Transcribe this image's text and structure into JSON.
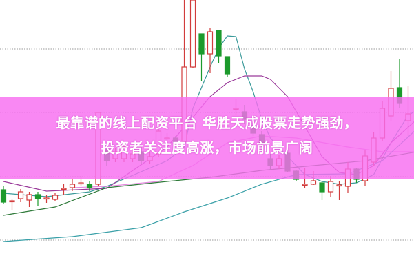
{
  "headline": {
    "line1": "最靠谱的线上配资平台 华胜天成股票走势强劲，",
    "line2": "投资者关注度高涨，市场前景广阔"
  },
  "colors": {
    "up": "#d23c3c",
    "down": "#1c9a2c",
    "banner": "#f86ef0",
    "grid": "#999999"
  },
  "chart_data": {
    "type": "candlestick",
    "title": "",
    "xlabel": "",
    "ylabel": "",
    "ylim": [
      0,
      40
    ],
    "grid": "horizontal dotted",
    "gridlines": [
      32.9,
      23.7,
      14.4,
      5.2
    ],
    "candles": [
      {
        "o": 12.5,
        "h": 13.0,
        "l": 10.4,
        "c": 10.7
      },
      {
        "o": 10.9,
        "h": 11.2,
        "l": 9.5,
        "c": 10.9
      },
      {
        "o": 11.2,
        "h": 12.6,
        "l": 10.7,
        "c": 12.2
      },
      {
        "o": 11.0,
        "h": 12.2,
        "l": 10.0,
        "c": 11.8
      },
      {
        "o": 11.8,
        "h": 12.2,
        "l": 10.2,
        "c": 11.2
      },
      {
        "o": 11.3,
        "h": 11.8,
        "l": 10.6,
        "c": 11.3
      },
      {
        "o": 11.1,
        "h": 12.0,
        "l": 10.8,
        "c": 11.7
      },
      {
        "o": 12.7,
        "h": 13.3,
        "l": 11.7,
        "c": 12.7
      },
      {
        "o": 12.8,
        "h": 14.0,
        "l": 12.3,
        "c": 13.3
      },
      {
        "o": 13.5,
        "h": 14.5,
        "l": 13.0,
        "c": 13.5
      },
      {
        "o": 13.3,
        "h": 13.7,
        "l": 12.3,
        "c": 12.8
      },
      {
        "o": 13.3,
        "h": 23.7,
        "l": 13.0,
        "c": 23.7
      },
      {
        "o": 18.3,
        "h": 19.0,
        "l": 16.0,
        "c": 16.7
      },
      {
        "o": 17.0,
        "h": 18.5,
        "l": 16.5,
        "c": 18.0
      },
      {
        "o": 17.0,
        "h": 19.2,
        "l": 16.5,
        "c": 18.7
      },
      {
        "o": 17.0,
        "h": 18.5,
        "l": 16.5,
        "c": 17.7
      },
      {
        "o": 18.0,
        "h": 18.7,
        "l": 16.3,
        "c": 16.7
      },
      {
        "o": 16.7,
        "h": 18.0,
        "l": 16.2,
        "c": 17.3
      },
      {
        "o": 17.7,
        "h": 22.0,
        "l": 17.3,
        "c": 21.0
      },
      {
        "o": 20.0,
        "h": 20.7,
        "l": 19.5,
        "c": 20.0
      },
      {
        "o": 20.0,
        "h": 20.3,
        "l": 19.0,
        "c": 19.3
      },
      {
        "o": 19.5,
        "h": 40.0,
        "l": 19.3,
        "c": 30.3
      },
      {
        "o": 30.3,
        "h": 40.0,
        "l": 30.1,
        "c": 40.0
      },
      {
        "o": 35.1,
        "h": 35.1,
        "l": 28.3,
        "c": 32.2
      },
      {
        "o": 32.2,
        "h": 36.0,
        "l": 29.4,
        "c": 35.4
      },
      {
        "o": 35.6,
        "h": 35.6,
        "l": 30.8,
        "c": 31.9
      },
      {
        "o": 31.8,
        "h": 31.8,
        "l": 28.9,
        "c": 29.3
      },
      {
        "o": 24.3,
        "h": 25.7,
        "l": 23.3,
        "c": 24.3
      },
      {
        "o": 23.8,
        "h": 24.8,
        "l": 22.0,
        "c": 22.7
      },
      {
        "o": 21.8,
        "h": 22.3,
        "l": 20.3,
        "c": 20.7
      },
      {
        "o": 20.5,
        "h": 21.0,
        "l": 18.7,
        "c": 19.2
      },
      {
        "o": 17.0,
        "h": 17.7,
        "l": 15.3,
        "c": 16.0
      },
      {
        "o": 16.0,
        "h": 17.5,
        "l": 15.5,
        "c": 17.0
      },
      {
        "o": 17.8,
        "h": 18.3,
        "l": 15.0,
        "c": 15.2
      },
      {
        "o": 15.2,
        "h": 15.3,
        "l": 13.8,
        "c": 14.0
      },
      {
        "o": 13.3,
        "h": 15.7,
        "l": 12.7,
        "c": 13.3
      },
      {
        "o": 13.3,
        "h": 15.2,
        "l": 13.2,
        "c": 13.8
      },
      {
        "o": 13.5,
        "h": 13.7,
        "l": 11.0,
        "c": 12.2
      },
      {
        "o": 12.2,
        "h": 14.5,
        "l": 11.4,
        "c": 13.7
      },
      {
        "o": 13.2,
        "h": 13.7,
        "l": 11.0,
        "c": 13.2
      },
      {
        "o": 13.0,
        "h": 16.5,
        "l": 12.0,
        "c": 15.5
      },
      {
        "o": 15.5,
        "h": 15.7,
        "l": 13.5,
        "c": 14.0
      },
      {
        "o": 13.8,
        "h": 18.3,
        "l": 13.0,
        "c": 17.4
      },
      {
        "o": 16.5,
        "h": 20.8,
        "l": 16.0,
        "c": 20.0
      },
      {
        "o": 20.0,
        "h": 25.3,
        "l": 19.5,
        "c": 24.3
      },
      {
        "o": 23.2,
        "h": 29.7,
        "l": 22.5,
        "c": 27.2
      },
      {
        "o": 27.3,
        "h": 31.4,
        "l": 24.3,
        "c": 25.0
      },
      {
        "o": 22.5,
        "h": 27.5,
        "l": 20.3,
        "c": 23.5
      }
    ],
    "moving_averages": [
      {
        "color": "#3a9a9a",
        "points": [
          [
            0,
            12.0
          ],
          [
            5,
            11.5
          ],
          [
            10,
            12.2
          ],
          [
            12,
            13.0
          ],
          [
            19,
            16.7
          ],
          [
            21,
            18.7
          ],
          [
            22,
            24.3
          ],
          [
            23,
            27.3
          ],
          [
            24,
            30.3
          ],
          [
            25,
            33.0
          ],
          [
            26,
            34.8
          ],
          [
            27,
            34.7
          ],
          [
            28,
            30.0
          ],
          [
            29,
            26.7
          ],
          [
            30,
            22.7
          ],
          [
            31,
            20.0
          ],
          [
            33,
            17.3
          ],
          [
            35,
            14.7
          ],
          [
            37,
            13.7
          ],
          [
            39,
            13.3
          ],
          [
            41,
            13.5
          ],
          [
            43,
            14.7
          ],
          [
            45,
            19.3
          ],
          [
            47,
            23.3
          ],
          [
            48,
            24.0
          ]
        ]
      },
      {
        "color": "#9a3a9a",
        "points": [
          [
            0,
            13.7
          ],
          [
            5,
            12.3
          ],
          [
            12,
            12.7
          ],
          [
            19,
            18.7
          ],
          [
            22,
            23.0
          ],
          [
            24,
            26.0
          ],
          [
            26,
            28.0
          ],
          [
            28,
            29.0
          ],
          [
            30,
            29.0
          ],
          [
            31,
            28.5
          ],
          [
            33,
            26.0
          ],
          [
            35,
            21.7
          ],
          [
            37,
            17.3
          ],
          [
            39,
            15.0
          ],
          [
            41,
            14.7
          ],
          [
            43,
            16.0
          ],
          [
            45,
            19.3
          ],
          [
            48,
            22.7
          ]
        ]
      },
      {
        "color": "#e58ae0",
        "points": [
          [
            8,
            12.8
          ],
          [
            12,
            13.0
          ],
          [
            18,
            13.7
          ],
          [
            22,
            16.0
          ],
          [
            26,
            19.3
          ],
          [
            30,
            20.3
          ],
          [
            34,
            20.0
          ],
          [
            40,
            18.7
          ],
          [
            44,
            18.0
          ],
          [
            48,
            18.0
          ]
        ]
      },
      {
        "color": "#2f7a3a",
        "points": [
          [
            0,
            8.8
          ],
          [
            6,
            10.0
          ],
          [
            12,
            12.8
          ],
          [
            19,
            13.7
          ],
          [
            24,
            14.3
          ],
          [
            30,
            15.3
          ],
          [
            36,
            16.0
          ],
          [
            42,
            16.7
          ],
          [
            48,
            18.0
          ]
        ]
      },
      {
        "color": "#3aa0a8",
        "points": [
          [
            0,
            5.0
          ],
          [
            8,
            5.7
          ],
          [
            16,
            7.0
          ],
          [
            21,
            9.3
          ],
          [
            26,
            11.3
          ],
          [
            30,
            13.3
          ],
          [
            34,
            14.7
          ],
          [
            40,
            14.8
          ],
          [
            44,
            16.7
          ],
          [
            48,
            21.3
          ]
        ]
      }
    ]
  }
}
